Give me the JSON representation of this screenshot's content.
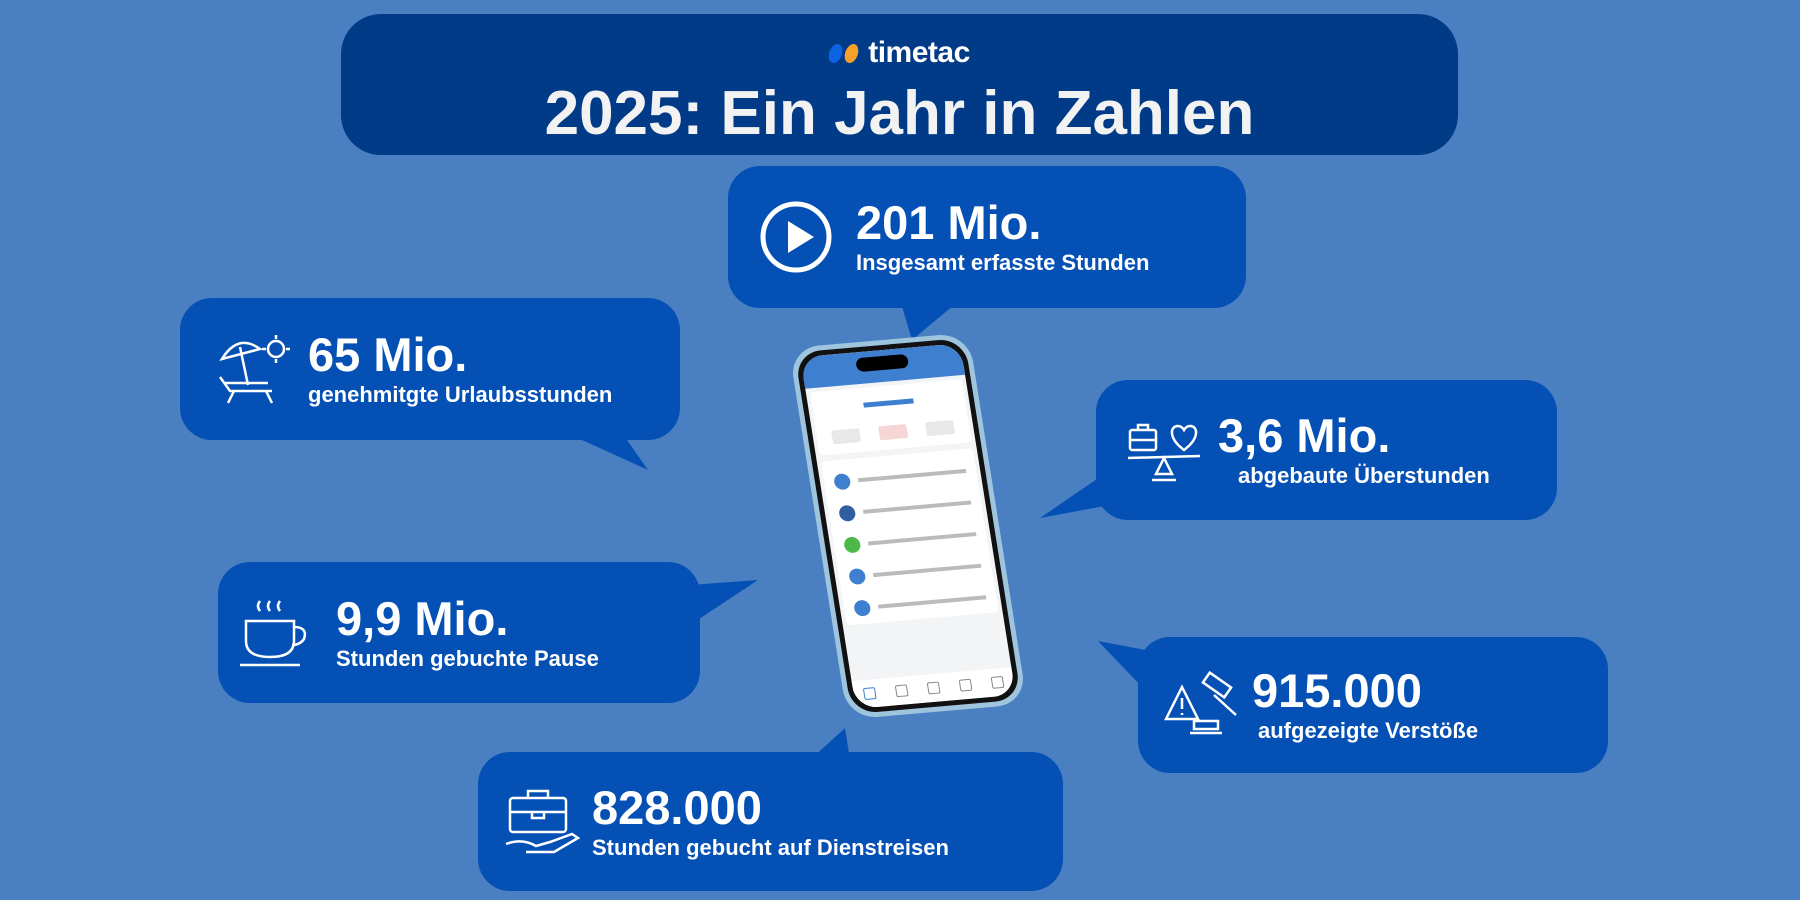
{
  "header": {
    "logo_text": "timetac",
    "logo_colors": [
      "#0a63e0",
      "#f7a02b"
    ],
    "title": "2025: Ein Jahr in Zahlen"
  },
  "colors": {
    "background": "#4a80c1",
    "header": "#013b87",
    "bubble": "#0450b4"
  },
  "stats": [
    {
      "icon": "play-icon",
      "value": "201 Mio.",
      "label": "Insgesamt erfasste Stunden"
    },
    {
      "icon": "beach-umbrella-icon",
      "value": "65 Mio.",
      "label": "genehmitgte Urlaubsstunden"
    },
    {
      "icon": "work-life-balance-icon",
      "value": "3,6 Mio.",
      "label": "abgebaute Überstunden"
    },
    {
      "icon": "coffee-cup-icon",
      "value": "9,9 Mio.",
      "label": "Stunden gebuchte Pause"
    },
    {
      "icon": "warning-gavel-icon",
      "value": "915.000",
      "label": "aufgezeigte Verstöße"
    },
    {
      "icon": "briefcase-plane-icon",
      "value": "828.000",
      "label": "Stunden  gebucht auf Dienstreisen"
    }
  ]
}
